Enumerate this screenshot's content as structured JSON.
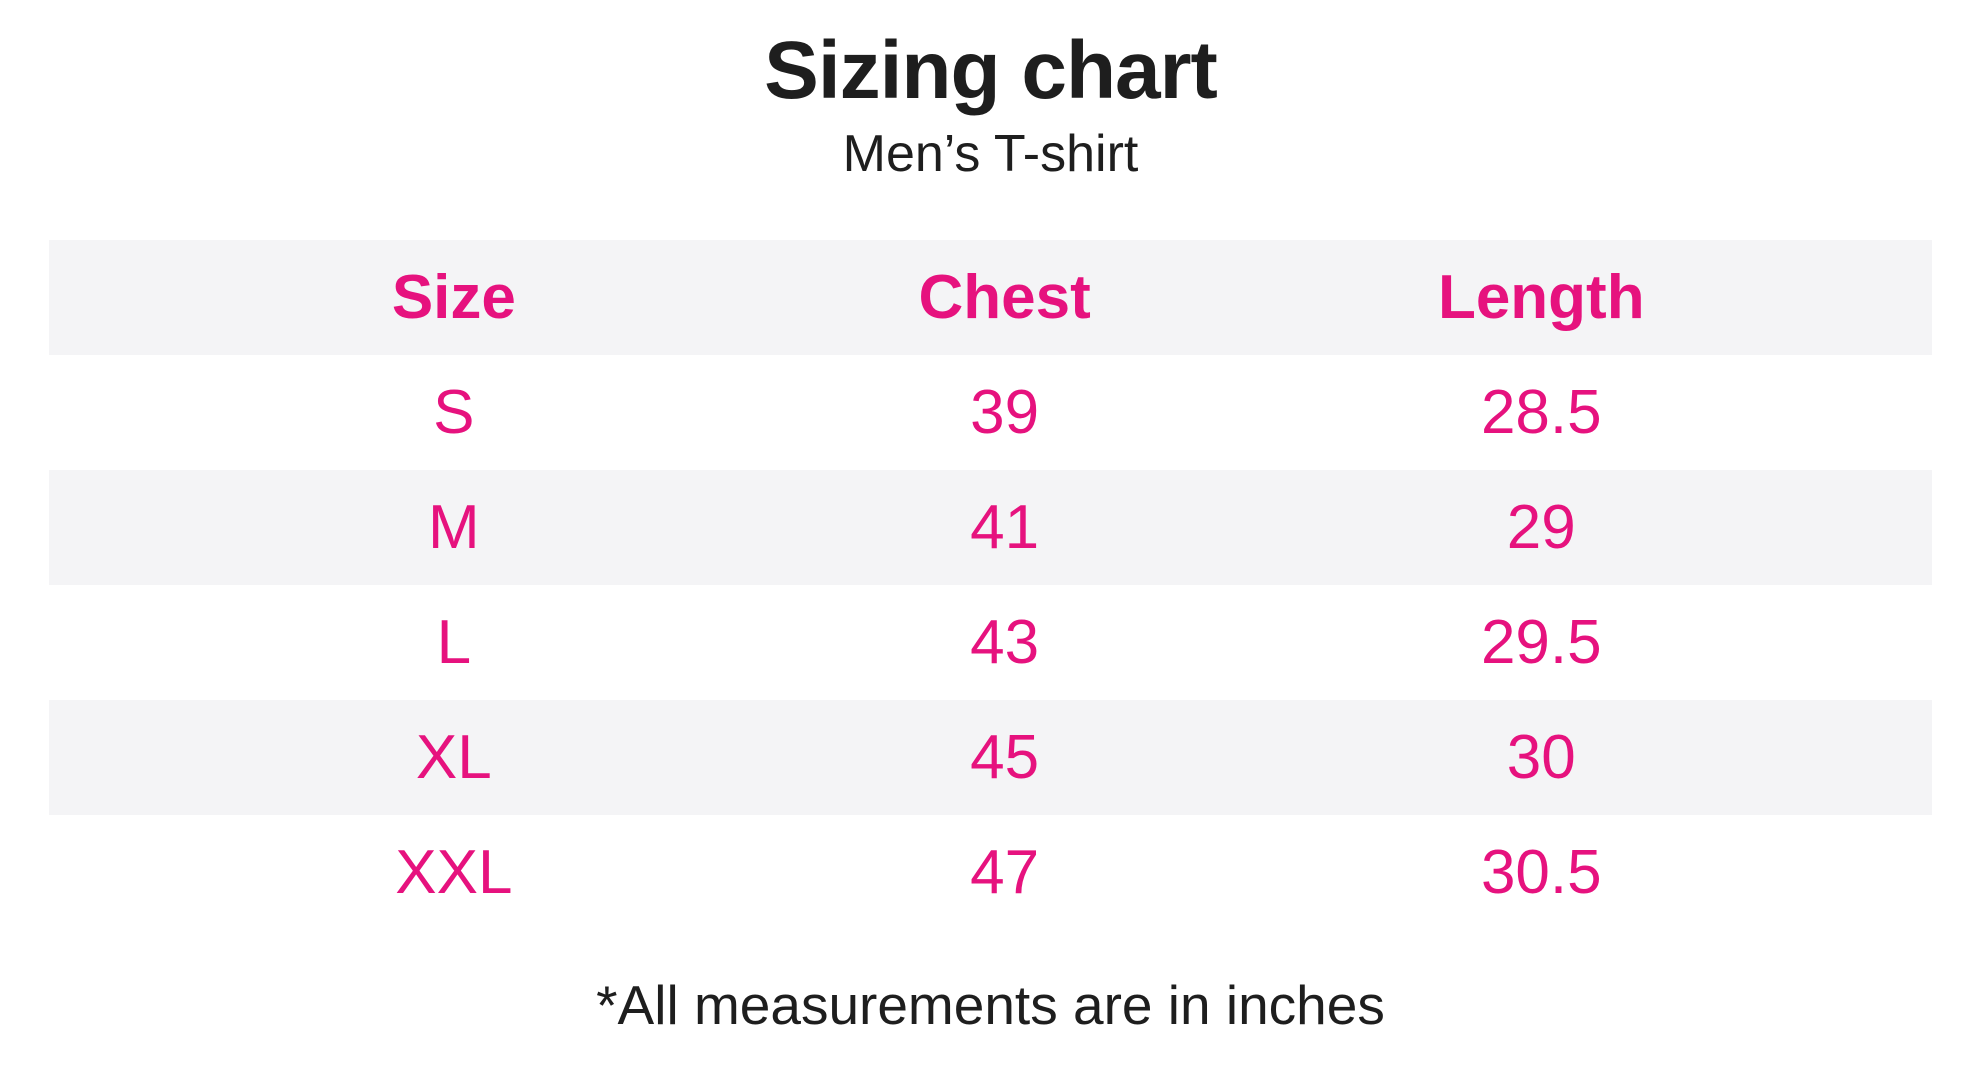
{
  "colors": {
    "accent_pink": "#E6127E",
    "row_stripe": "#F4F4F6",
    "text_black": "#1E1E1E",
    "background": "#FFFFFF"
  },
  "header": {
    "title": "Sizing chart",
    "subtitle": "Men’s T-shirt"
  },
  "table": {
    "columns": [
      "Size",
      "Chest",
      "Length"
    ],
    "rows": [
      [
        "S",
        "39",
        "28.5"
      ],
      [
        "M",
        "41",
        "29"
      ],
      [
        "L",
        "43",
        "29.5"
      ],
      [
        "XL",
        "45",
        "30"
      ],
      [
        "XXL",
        "47",
        "30.5"
      ]
    ]
  },
  "footer": {
    "note": "*All measurements are in inches"
  },
  "chart_data": {
    "type": "table",
    "title": "Sizing chart",
    "subtitle": "Men’s T-shirt",
    "columns": [
      "Size",
      "Chest",
      "Length"
    ],
    "rows": [
      {
        "Size": "S",
        "Chest": 39,
        "Length": 28.5
      },
      {
        "Size": "M",
        "Chest": 41,
        "Length": 29
      },
      {
        "Size": "L",
        "Chest": 43,
        "Length": 29.5
      },
      {
        "Size": "XL",
        "Chest": 45,
        "Length": 30
      },
      {
        "Size": "XXL",
        "Chest": 47,
        "Length": 30.5
      }
    ],
    "units": "inches",
    "footnote": "*All measurements are in inches",
    "layout": {
      "header_text_color": "#E6127E",
      "data_text_color": "#E6127E",
      "striped_rows": true,
      "grid": false
    }
  }
}
